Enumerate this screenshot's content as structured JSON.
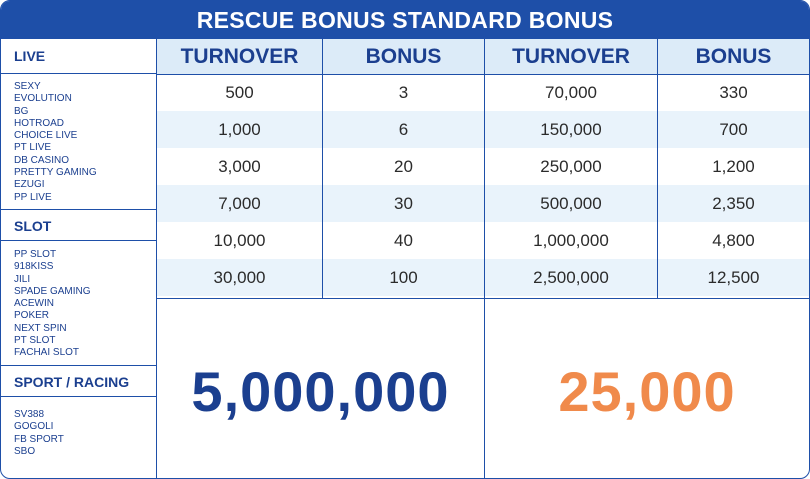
{
  "title": "RESCUE BONUS STANDARD BONUS",
  "sections": [
    {
      "heading": "LIVE",
      "items": [
        "SEXY",
        "EVOLUTION",
        "BG",
        "HOTROAD",
        "CHOICE LIVE",
        "PT LIVE",
        "DB CASINO",
        "PRETTY GAMING",
        "EZUGI",
        "PP LIVE"
      ]
    },
    {
      "heading": "SLOT",
      "items": [
        "PP SLOT",
        "918KISS",
        "JILI",
        "SPADE GAMING",
        "ACEWIN",
        "POKER",
        "NEXT SPIN",
        "PT SLOT",
        "FACHAI SLOT"
      ]
    },
    {
      "heading": "SPORT / RACING",
      "items": [
        "SV388",
        "GOGOLI",
        "FB SPORT",
        "SBO"
      ]
    }
  ],
  "headers": [
    "TURNOVER",
    "BONUS",
    "TURNOVER",
    "BONUS"
  ],
  "rows": [
    [
      "500",
      "3",
      "70,000",
      "330"
    ],
    [
      "1,000",
      "6",
      "150,000",
      "700"
    ],
    [
      "3,000",
      "20",
      "250,000",
      "1,200"
    ],
    [
      "7,000",
      "30",
      "500,000",
      "2,350"
    ],
    [
      "10,000",
      "40",
      "1,000,000",
      "4,800"
    ],
    [
      "30,000",
      "100",
      "2,500,000",
      "12,500"
    ]
  ],
  "max_turnover": "5,000,000",
  "max_bonus": "25,000",
  "colors": {
    "brand_blue": "#1e4fa8",
    "text_blue": "#1b3f8f",
    "orange": "#f08a4b",
    "light_row": "#e9f3fb"
  }
}
